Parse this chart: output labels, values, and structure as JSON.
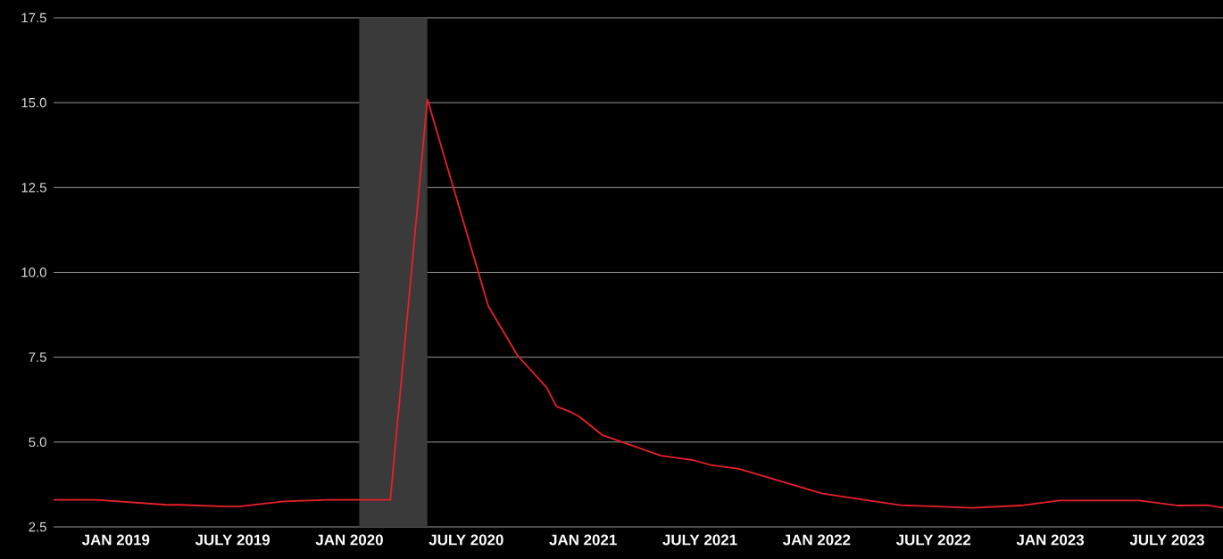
{
  "chart_data": {
    "type": "line",
    "x": [
      "2018-09-25",
      "2018-12-01",
      "2019-03-20",
      "2019-04-10",
      "2019-06-20",
      "2019-07-10",
      "2019-09-20",
      "2019-11-28",
      "2020-01-16",
      "2020-03-04",
      "2020-05-01",
      "2020-08-05",
      "2020-09-20",
      "2020-11-05",
      "2020-11-20",
      "2020-12-10",
      "2020-12-25",
      "2021-02-01",
      "2021-03-01",
      "2021-05-01",
      "2021-06-20",
      "2021-07-18",
      "2021-09-01",
      "2022-01-10",
      "2022-05-10",
      "2022-09-01",
      "2022-11-15",
      "2023-01-15",
      "2023-05-18",
      "2023-07-18",
      "2023-09-03",
      "2023-09-27"
    ],
    "series": [
      {
        "color": "#e8202a",
        "values": [
          3.3,
          3.3,
          3.15,
          3.15,
          3.1,
          3.1,
          3.25,
          3.3,
          3.3,
          3.3,
          15.1,
          9.0,
          7.55,
          6.6,
          6.05,
          5.9,
          5.75,
          5.2,
          5.0,
          4.6,
          4.47,
          4.32,
          4.21,
          3.48,
          3.14,
          3.06,
          3.13,
          3.28,
          3.28,
          3.13,
          3.14,
          3.06
        ]
      }
    ],
    "xlim": [
      "2018-09-25",
      "2023-09-27"
    ],
    "xticks": [
      {
        "value": "2019-01",
        "label": "JAN 2019"
      },
      {
        "value": "2019-07",
        "label": "JULY 2019"
      },
      {
        "value": "2020-01",
        "label": "JAN 2020"
      },
      {
        "value": "2020-07",
        "label": "JULY 2020"
      },
      {
        "value": "2021-01",
        "label": "JAN 2021"
      },
      {
        "value": "2021-07",
        "label": "JULY 2021"
      },
      {
        "value": "2022-01",
        "label": "JAN 2022"
      },
      {
        "value": "2022-07",
        "label": "JULY 2022"
      },
      {
        "value": "2023-01",
        "label": "JAN 2023"
      },
      {
        "value": "2023-07",
        "label": "JULY 2023"
      }
    ],
    "ylim": [
      2.5,
      17.5
    ],
    "yticks": [
      {
        "value": 2.5,
        "label": "2.5"
      },
      {
        "value": 5,
        "label": "5.0"
      },
      {
        "value": 7.5,
        "label": "7.5"
      },
      {
        "value": 10,
        "label": "10.0"
      },
      {
        "value": 12.5,
        "label": "12.5"
      },
      {
        "value": 15,
        "label": "15.0"
      },
      {
        "value": 17.5,
        "label": "17.5"
      }
    ],
    "bands": [
      {
        "axis": "x",
        "from": "2020-01-16",
        "to": "2020-05-01",
        "color": "#3a3a3a"
      }
    ],
    "grid": "y"
  }
}
